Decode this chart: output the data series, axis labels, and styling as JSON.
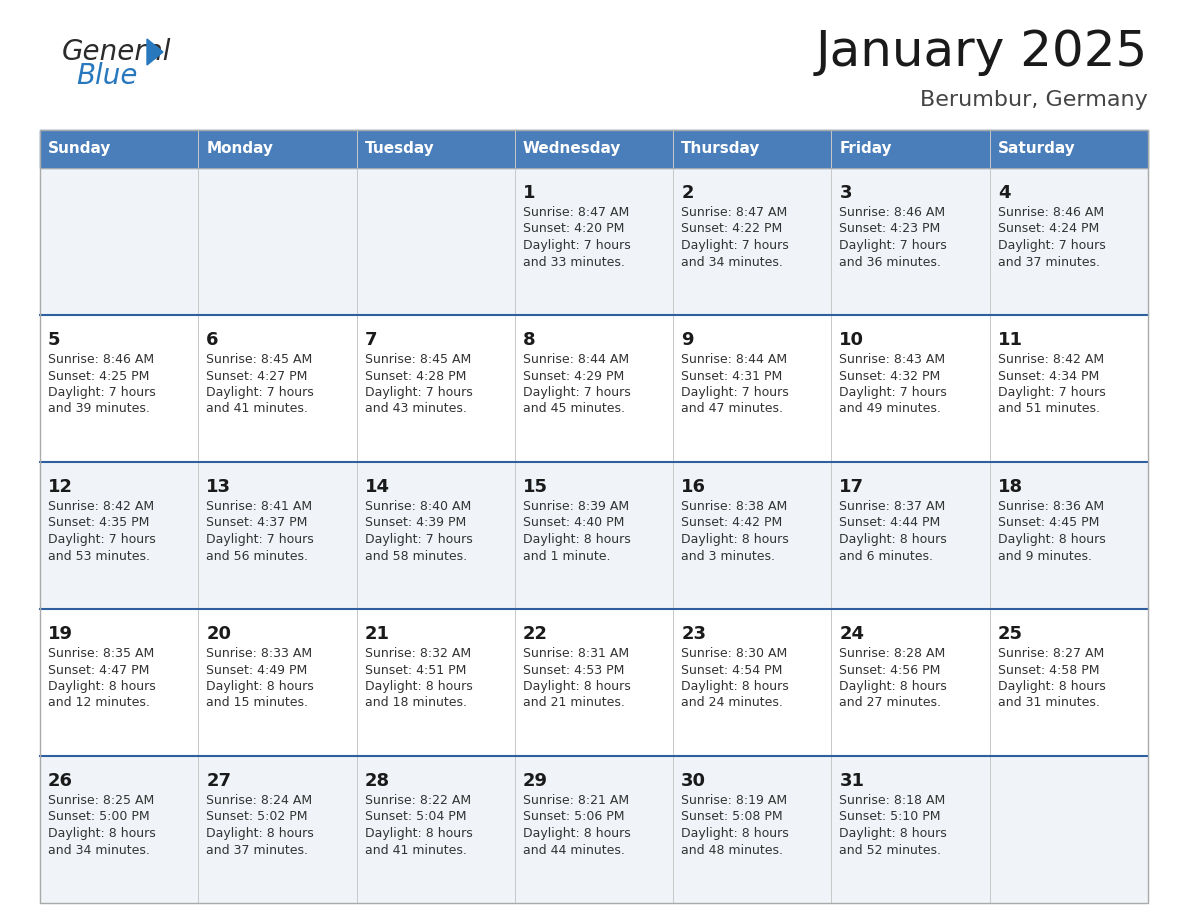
{
  "title": "January 2025",
  "subtitle": "Berumbur, Germany",
  "header_bg": "#4a7eba",
  "header_text_color": "#ffffff",
  "row_bg_odd": "#f0f4f8",
  "row_bg_even": "#ffffff",
  "separator_color": "#2e5f9e",
  "day_headers": [
    "Sunday",
    "Monday",
    "Tuesday",
    "Wednesday",
    "Thursday",
    "Friday",
    "Saturday"
  ],
  "weeks": [
    {
      "days": [
        {
          "day": null,
          "info": null
        },
        {
          "day": null,
          "info": null
        },
        {
          "day": null,
          "info": null
        },
        {
          "day": 1,
          "info": {
            "sunrise": "8:47 AM",
            "sunset": "4:20 PM",
            "daylight_line1": "Daylight: 7 hours",
            "daylight_line2": "and 33 minutes."
          }
        },
        {
          "day": 2,
          "info": {
            "sunrise": "8:47 AM",
            "sunset": "4:22 PM",
            "daylight_line1": "Daylight: 7 hours",
            "daylight_line2": "and 34 minutes."
          }
        },
        {
          "day": 3,
          "info": {
            "sunrise": "8:46 AM",
            "sunset": "4:23 PM",
            "daylight_line1": "Daylight: 7 hours",
            "daylight_line2": "and 36 minutes."
          }
        },
        {
          "day": 4,
          "info": {
            "sunrise": "8:46 AM",
            "sunset": "4:24 PM",
            "daylight_line1": "Daylight: 7 hours",
            "daylight_line2": "and 37 minutes."
          }
        }
      ]
    },
    {
      "days": [
        {
          "day": 5,
          "info": {
            "sunrise": "8:46 AM",
            "sunset": "4:25 PM",
            "daylight_line1": "Daylight: 7 hours",
            "daylight_line2": "and 39 minutes."
          }
        },
        {
          "day": 6,
          "info": {
            "sunrise": "8:45 AM",
            "sunset": "4:27 PM",
            "daylight_line1": "Daylight: 7 hours",
            "daylight_line2": "and 41 minutes."
          }
        },
        {
          "day": 7,
          "info": {
            "sunrise": "8:45 AM",
            "sunset": "4:28 PM",
            "daylight_line1": "Daylight: 7 hours",
            "daylight_line2": "and 43 minutes."
          }
        },
        {
          "day": 8,
          "info": {
            "sunrise": "8:44 AM",
            "sunset": "4:29 PM",
            "daylight_line1": "Daylight: 7 hours",
            "daylight_line2": "and 45 minutes."
          }
        },
        {
          "day": 9,
          "info": {
            "sunrise": "8:44 AM",
            "sunset": "4:31 PM",
            "daylight_line1": "Daylight: 7 hours",
            "daylight_line2": "and 47 minutes."
          }
        },
        {
          "day": 10,
          "info": {
            "sunrise": "8:43 AM",
            "sunset": "4:32 PM",
            "daylight_line1": "Daylight: 7 hours",
            "daylight_line2": "and 49 minutes."
          }
        },
        {
          "day": 11,
          "info": {
            "sunrise": "8:42 AM",
            "sunset": "4:34 PM",
            "daylight_line1": "Daylight: 7 hours",
            "daylight_line2": "and 51 minutes."
          }
        }
      ]
    },
    {
      "days": [
        {
          "day": 12,
          "info": {
            "sunrise": "8:42 AM",
            "sunset": "4:35 PM",
            "daylight_line1": "Daylight: 7 hours",
            "daylight_line2": "and 53 minutes."
          }
        },
        {
          "day": 13,
          "info": {
            "sunrise": "8:41 AM",
            "sunset": "4:37 PM",
            "daylight_line1": "Daylight: 7 hours",
            "daylight_line2": "and 56 minutes."
          }
        },
        {
          "day": 14,
          "info": {
            "sunrise": "8:40 AM",
            "sunset": "4:39 PM",
            "daylight_line1": "Daylight: 7 hours",
            "daylight_line2": "and 58 minutes."
          }
        },
        {
          "day": 15,
          "info": {
            "sunrise": "8:39 AM",
            "sunset": "4:40 PM",
            "daylight_line1": "Daylight: 8 hours",
            "daylight_line2": "and 1 minute."
          }
        },
        {
          "day": 16,
          "info": {
            "sunrise": "8:38 AM",
            "sunset": "4:42 PM",
            "daylight_line1": "Daylight: 8 hours",
            "daylight_line2": "and 3 minutes."
          }
        },
        {
          "day": 17,
          "info": {
            "sunrise": "8:37 AM",
            "sunset": "4:44 PM",
            "daylight_line1": "Daylight: 8 hours",
            "daylight_line2": "and 6 minutes."
          }
        },
        {
          "day": 18,
          "info": {
            "sunrise": "8:36 AM",
            "sunset": "4:45 PM",
            "daylight_line1": "Daylight: 8 hours",
            "daylight_line2": "and 9 minutes."
          }
        }
      ]
    },
    {
      "days": [
        {
          "day": 19,
          "info": {
            "sunrise": "8:35 AM",
            "sunset": "4:47 PM",
            "daylight_line1": "Daylight: 8 hours",
            "daylight_line2": "and 12 minutes."
          }
        },
        {
          "day": 20,
          "info": {
            "sunrise": "8:33 AM",
            "sunset": "4:49 PM",
            "daylight_line1": "Daylight: 8 hours",
            "daylight_line2": "and 15 minutes."
          }
        },
        {
          "day": 21,
          "info": {
            "sunrise": "8:32 AM",
            "sunset": "4:51 PM",
            "daylight_line1": "Daylight: 8 hours",
            "daylight_line2": "and 18 minutes."
          }
        },
        {
          "day": 22,
          "info": {
            "sunrise": "8:31 AM",
            "sunset": "4:53 PM",
            "daylight_line1": "Daylight: 8 hours",
            "daylight_line2": "and 21 minutes."
          }
        },
        {
          "day": 23,
          "info": {
            "sunrise": "8:30 AM",
            "sunset": "4:54 PM",
            "daylight_line1": "Daylight: 8 hours",
            "daylight_line2": "and 24 minutes."
          }
        },
        {
          "day": 24,
          "info": {
            "sunrise": "8:28 AM",
            "sunset": "4:56 PM",
            "daylight_line1": "Daylight: 8 hours",
            "daylight_line2": "and 27 minutes."
          }
        },
        {
          "day": 25,
          "info": {
            "sunrise": "8:27 AM",
            "sunset": "4:58 PM",
            "daylight_line1": "Daylight: 8 hours",
            "daylight_line2": "and 31 minutes."
          }
        }
      ]
    },
    {
      "days": [
        {
          "day": 26,
          "info": {
            "sunrise": "8:25 AM",
            "sunset": "5:00 PM",
            "daylight_line1": "Daylight: 8 hours",
            "daylight_line2": "and 34 minutes."
          }
        },
        {
          "day": 27,
          "info": {
            "sunrise": "8:24 AM",
            "sunset": "5:02 PM",
            "daylight_line1": "Daylight: 8 hours",
            "daylight_line2": "and 37 minutes."
          }
        },
        {
          "day": 28,
          "info": {
            "sunrise": "8:22 AM",
            "sunset": "5:04 PM",
            "daylight_line1": "Daylight: 8 hours",
            "daylight_line2": "and 41 minutes."
          }
        },
        {
          "day": 29,
          "info": {
            "sunrise": "8:21 AM",
            "sunset": "5:06 PM",
            "daylight_line1": "Daylight: 8 hours",
            "daylight_line2": "and 44 minutes."
          }
        },
        {
          "day": 30,
          "info": {
            "sunrise": "8:19 AM",
            "sunset": "5:08 PM",
            "daylight_line1": "Daylight: 8 hours",
            "daylight_line2": "and 48 minutes."
          }
        },
        {
          "day": 31,
          "info": {
            "sunrise": "8:18 AM",
            "sunset": "5:10 PM",
            "daylight_line1": "Daylight: 8 hours",
            "daylight_line2": "and 52 minutes."
          }
        },
        {
          "day": null,
          "info": null
        }
      ]
    }
  ],
  "logo_general_color": "#2b2b2b",
  "logo_blue_color": "#2878be",
  "logo_triangle_color": "#2878be",
  "title_fontsize": 36,
  "subtitle_fontsize": 16,
  "header_fontsize": 11,
  "day_num_fontsize": 13,
  "info_fontsize": 9
}
